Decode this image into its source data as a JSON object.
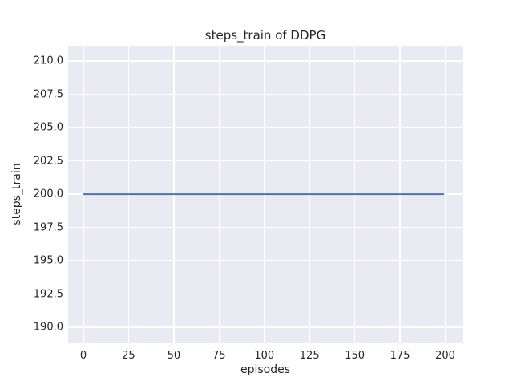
{
  "chart_data": {
    "type": "line",
    "title": "steps_train of DDPG",
    "xlabel": "episodes",
    "ylabel": "steps_train",
    "xlim": [
      -8.4,
      209.5
    ],
    "ylim": [
      188.8,
      211.15
    ],
    "xtick_values": [
      0,
      25,
      50,
      75,
      100,
      125,
      150,
      175,
      200
    ],
    "xtick_labels": [
      "0",
      "25",
      "50",
      "75",
      "100",
      "125",
      "150",
      "175",
      "200"
    ],
    "ytick_values": [
      190.0,
      192.5,
      195.0,
      197.5,
      200.0,
      202.5,
      205.0,
      207.5,
      210.0
    ],
    "ytick_labels": [
      "190.0",
      "192.5",
      "195.0",
      "197.5",
      "200.0",
      "202.5",
      "205.0",
      "207.5",
      "210.0"
    ],
    "grid": true,
    "legend": false,
    "style": "seaborn-darkgrid",
    "plot_bg_color": "#EAEAF2",
    "grid_color": "#FFFFFF",
    "text_color": "#262626",
    "line_width": 2,
    "series": [
      {
        "name": "steps_train",
        "color": "#4C72B0",
        "x": [
          0,
          199
        ],
        "y": [
          200,
          200
        ]
      }
    ]
  }
}
